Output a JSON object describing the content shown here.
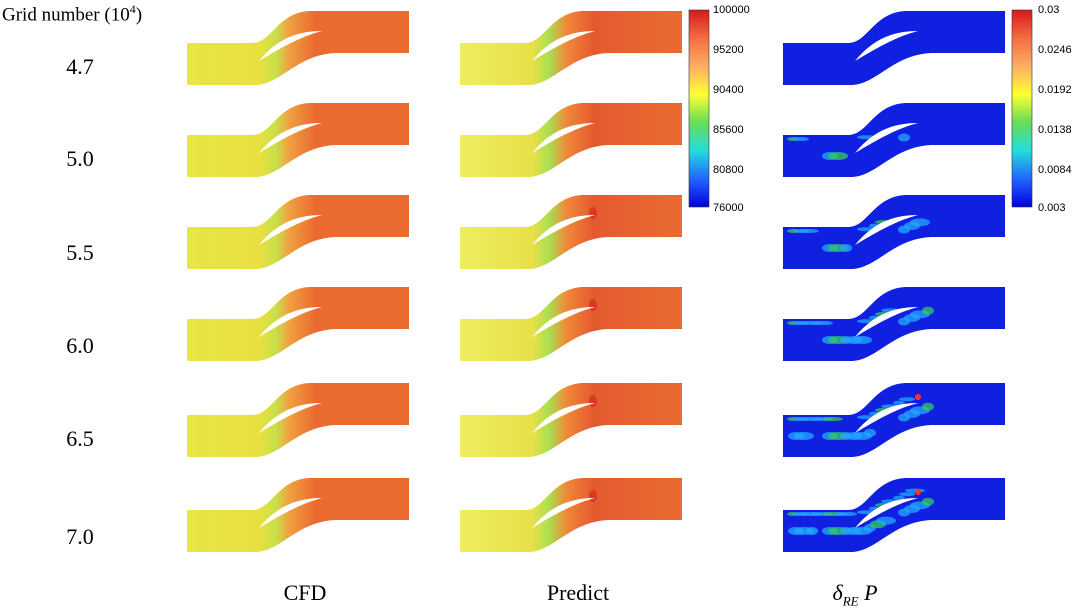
{
  "title": {
    "main": "Grid number (10",
    "sup": "4",
    "close": ")"
  },
  "rows": [
    "4.7",
    "5.0",
    "5.5",
    "6.0",
    "6.5",
    "7.0"
  ],
  "columns": {
    "cfd": "CFD",
    "predict": "Predict",
    "delta": {
      "symbol": "δ",
      "subscript": "RE",
      "var": " P"
    }
  },
  "colorbars": {
    "pressure": {
      "ticks": [
        "100000",
        "95200",
        "90400",
        "85600",
        "80800",
        "76000"
      ],
      "colors": [
        "#d7191c",
        "#f46d43",
        "#fdae61",
        "#ffff33",
        "#66dd55",
        "#22dddd",
        "#2266ff",
        "#0000dd"
      ]
    },
    "error": {
      "ticks": [
        "0.03",
        "0.0246",
        "0.0192",
        "0.0138",
        "0.0084",
        "0.003"
      ],
      "colors": [
        "#d7191c",
        "#f46d43",
        "#fdae61",
        "#ffff33",
        "#66dd55",
        "#22dddd",
        "#2266ff",
        "#0000dd"
      ]
    }
  },
  "fields": {
    "inlet_color": "#e6e645",
    "outlet_color": "#ea6a30",
    "error_base": "#1020e0",
    "error_hot": "#33cc55"
  }
}
